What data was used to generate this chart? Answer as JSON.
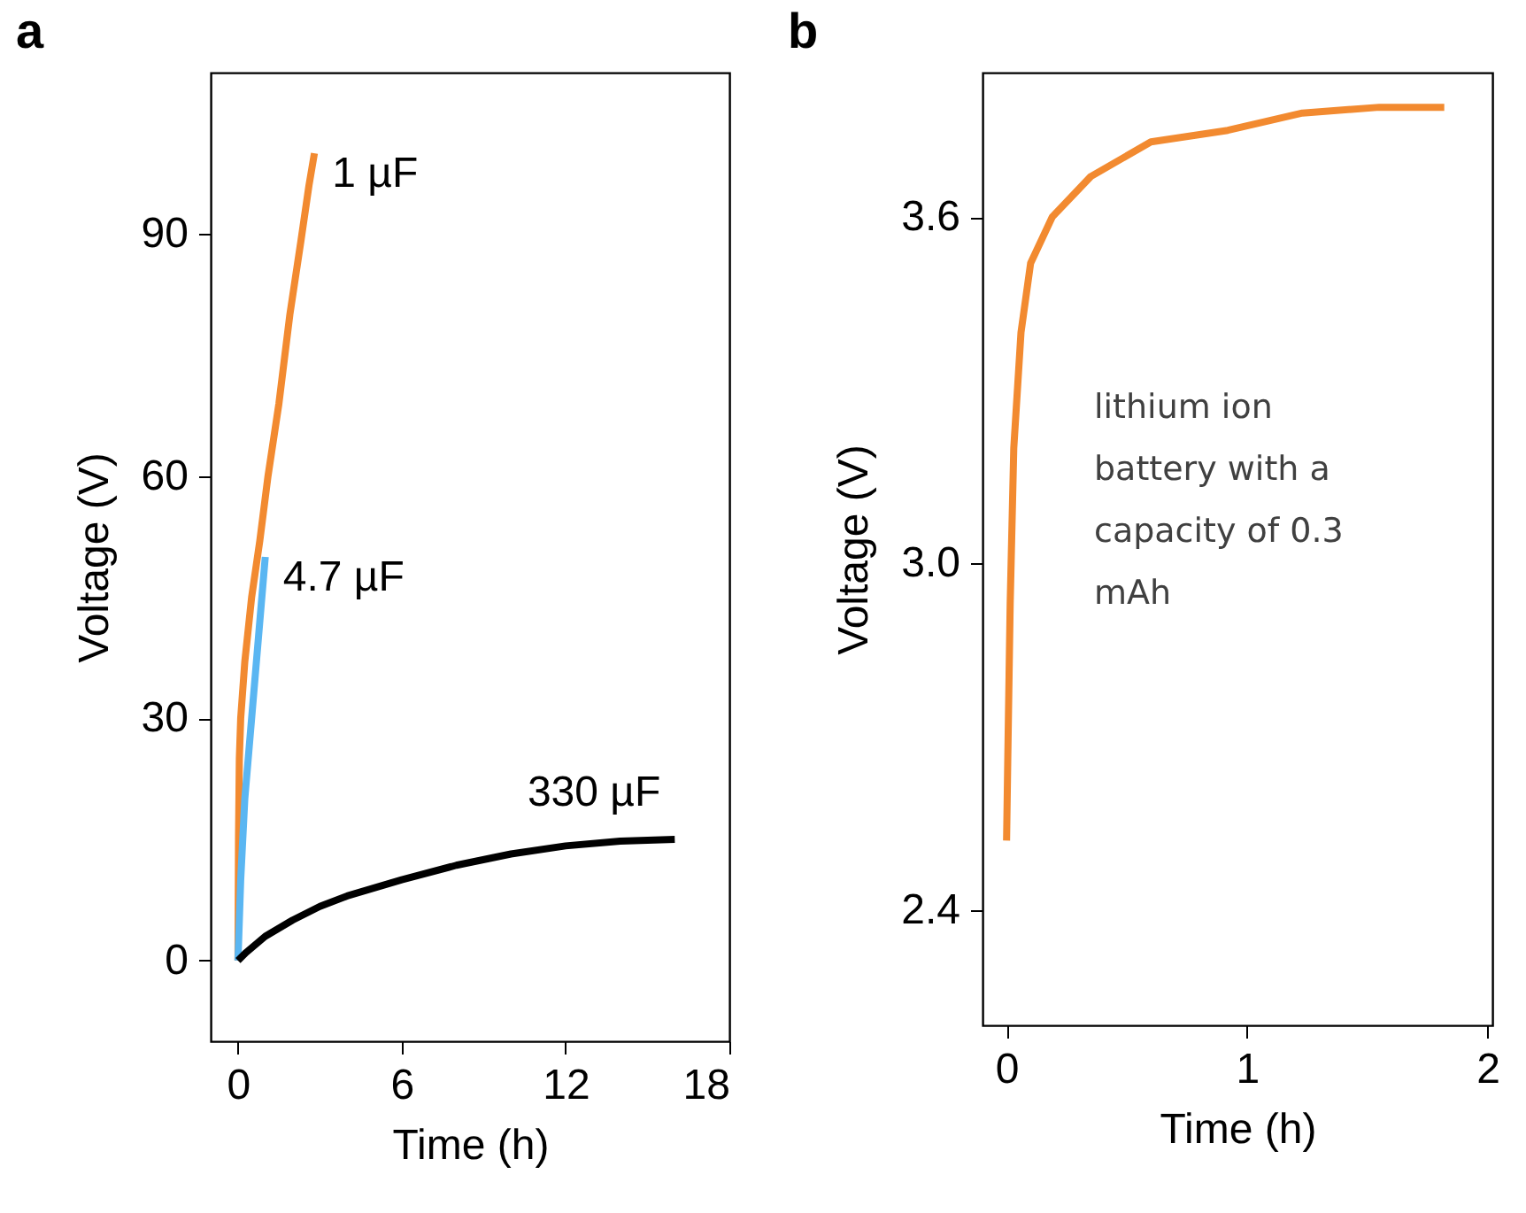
{
  "chart_data": [
    {
      "type": "line",
      "title": "a",
      "xlabel": "Time (h)",
      "ylabel": "Voltage (V)",
      "xlim": [
        -1,
        18
      ],
      "xticks": [
        0,
        6,
        12,
        18
      ],
      "ylim": [
        -10,
        110
      ],
      "yticks": [
        0,
        30,
        60,
        90
      ],
      "grid": false,
      "series": [
        {
          "name": "1 µF",
          "color": "#f28a30",
          "x": [
            0,
            0.02,
            0.05,
            0.1,
            0.25,
            0.5,
            0.8,
            1.1,
            1.5,
            1.9,
            2.3,
            2.6,
            2.8
          ],
          "values": [
            0,
            15,
            25,
            30,
            37,
            45,
            52,
            60,
            69,
            80,
            89,
            96,
            100
          ]
        },
        {
          "name": "4.7 µF",
          "color": "#5ab6f2",
          "x": [
            0,
            0.1,
            0.25,
            0.5,
            0.75,
            1.0
          ],
          "values": [
            0,
            10,
            20,
            30,
            40,
            50
          ]
        },
        {
          "name": "330 µF",
          "color": "#000000",
          "x": [
            0,
            0.3,
            1,
            2,
            3,
            4,
            6,
            8,
            10,
            12,
            14,
            16
          ],
          "values": [
            0,
            1,
            3,
            5,
            6.7,
            8,
            10,
            11.8,
            13.2,
            14.2,
            14.8,
            15
          ]
        }
      ]
    },
    {
      "type": "line",
      "title": "b",
      "xlabel": "Time (h)",
      "ylabel": "Voltage (V)",
      "xlim": [
        -0.1,
        2.02
      ],
      "xticks": [
        0,
        1,
        2
      ],
      "ylim": [
        2.2,
        3.85
      ],
      "yticks": [
        2.4,
        {
          "value": 3,
          "label": "3.0"
        },
        3.6
      ],
      "grid": false,
      "annotations": [
        "lithium ion battery with a capacity of 0.3 mAh"
      ],
      "series": [
        {
          "color": "#f28a30",
          "x": [
            0,
            0.005,
            0.015,
            0.03,
            0.06,
            0.1,
            0.19,
            0.35,
            0.6,
            0.92,
            1.23,
            1.55,
            1.82
          ],
          "values": [
            2.52,
            2.66,
            2.93,
            3.2,
            3.4,
            3.52,
            3.6,
            3.67,
            3.73,
            3.75,
            3.78,
            3.79,
            3.79
          ]
        }
      ]
    }
  ]
}
